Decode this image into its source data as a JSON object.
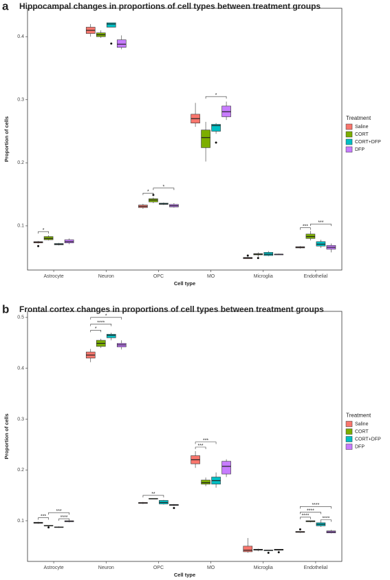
{
  "chart_data": [
    {
      "type": "boxplot",
      "panel": "a",
      "title": "Hippocampal changes in proportions of cell types between treatment groups",
      "xlabel": "Cell type",
      "ylabel": "Proportion of cells",
      "legend_title": "Treatment",
      "legend": "right",
      "grid": false,
      "categories": [
        "Astrocyte",
        "Neuron",
        "OPC",
        "MO",
        "Microglia",
        "Endothelial"
      ],
      "ylim": [
        0.03,
        0.445
      ],
      "yticks": [
        0.1,
        0.2,
        0.3,
        0.4
      ],
      "series": [
        {
          "name": "Saline",
          "color": "#f8766d",
          "values": [
            [
              0.072,
              0.073,
              0.074,
              0.075,
              0.076
            ],
            [
              0.4,
              0.405,
              0.41,
              0.415,
              0.42
            ],
            [
              0.127,
              0.129,
              0.131,
              0.133,
              0.135
            ],
            [
              0.257,
              0.263,
              0.27,
              0.277,
              0.295
            ],
            [
              0.048,
              0.048,
              0.049,
              0.05,
              0.051
            ],
            [
              0.064,
              0.065,
              0.066,
              0.067,
              0.068
            ]
          ]
        },
        {
          "name": "CORT",
          "color": "#7cae00",
          "values": [
            [
              0.077,
              0.078,
              0.08,
              0.083,
              0.085
            ],
            [
              0.398,
              0.4,
              0.403,
              0.406,
              0.41
            ],
            [
              0.136,
              0.138,
              0.141,
              0.143,
              0.145
            ],
            [
              0.202,
              0.224,
              0.24,
              0.252,
              0.265
            ],
            [
              0.051,
              0.054,
              0.055,
              0.056,
              0.058
            ],
            [
              0.077,
              0.08,
              0.083,
              0.087,
              0.092
            ]
          ]
        },
        {
          "name": "CORT+DFP",
          "color": "#00bfc4",
          "values": [
            [
              0.069,
              0.07,
              0.071,
              0.072,
              0.073
            ],
            [
              0.415,
              0.415,
              0.42,
              0.422,
              0.422
            ],
            [
              0.133,
              0.134,
              0.135,
              0.136,
              0.137
            ],
            [
              0.246,
              0.25,
              0.259,
              0.261,
              0.263
            ],
            [
              0.052,
              0.053,
              0.055,
              0.058,
              0.06
            ],
            [
              0.065,
              0.068,
              0.071,
              0.075,
              0.078
            ]
          ]
        },
        {
          "name": "DFP",
          "color": "#c77cff",
          "values": [
            [
              0.071,
              0.073,
              0.075,
              0.078,
              0.08
            ],
            [
              0.38,
              0.383,
              0.388,
              0.395,
              0.402
            ],
            [
              0.129,
              0.13,
              0.132,
              0.134,
              0.136
            ],
            [
              0.268,
              0.273,
              0.281,
              0.29,
              0.297
            ],
            [
              0.054,
              0.054,
              0.055,
              0.055,
              0.056
            ],
            [
              0.058,
              0.063,
              0.066,
              0.069,
              0.072
            ]
          ]
        }
      ],
      "outliers": [
        {
          "series": "Saline",
          "category": "Astrocyte",
          "value": 0.068
        },
        {
          "series": "CORT+DFP",
          "category": "Neuron",
          "value": 0.389
        },
        {
          "series": "CORT",
          "category": "OPC",
          "value": 0.149
        },
        {
          "series": "CORT+DFP",
          "category": "MO",
          "value": 0.232
        },
        {
          "series": "Saline",
          "category": "Microglia",
          "value": 0.053
        },
        {
          "series": "CORT",
          "category": "Microglia",
          "value": 0.049
        }
      ],
      "brackets": [
        {
          "category": "Astrocyte",
          "from": "Saline",
          "to": "CORT",
          "y": 0.091,
          "label": "*"
        },
        {
          "category": "OPC",
          "from": "Saline",
          "to": "CORT",
          "y": 0.152,
          "label": "*"
        },
        {
          "category": "OPC",
          "from": "CORT",
          "to": "DFP",
          "y": 0.16,
          "label": "*"
        },
        {
          "category": "MO",
          "from": "CORT",
          "to": "DFP",
          "y": 0.305,
          "label": "*"
        },
        {
          "category": "Endothelial",
          "from": "Saline",
          "to": "CORT",
          "y": 0.097,
          "label": "***"
        },
        {
          "category": "Endothelial",
          "from": "CORT",
          "to": "DFP",
          "y": 0.103,
          "label": "***"
        }
      ]
    },
    {
      "type": "boxplot",
      "panel": "b",
      "title": "Frontal cortex changes in proportions of cell types between treatment groups",
      "xlabel": "Cell type",
      "ylabel": "Proportion of cells",
      "legend_title": "Treatment",
      "legend": "right",
      "grid": false,
      "categories": [
        "Astrocyte",
        "Neuron",
        "OPC",
        "MO",
        "Microglia",
        "Endothelial"
      ],
      "ylim": [
        0.02,
        0.512
      ],
      "yticks": [
        0.1,
        0.2,
        0.3,
        0.4,
        0.5
      ],
      "series": [
        {
          "name": "Saline",
          "color": "#f8766d",
          "values": [
            [
              0.094,
              0.095,
              0.096,
              0.097,
              0.098
            ],
            [
              0.412,
              0.42,
              0.426,
              0.432,
              0.438
            ],
            [
              0.133,
              0.134,
              0.135,
              0.136,
              0.137
            ],
            [
              0.204,
              0.212,
              0.22,
              0.228,
              0.237
            ],
            [
              0.037,
              0.039,
              0.042,
              0.05,
              0.066
            ],
            [
              0.076,
              0.077,
              0.078,
              0.079,
              0.079
            ]
          ]
        },
        {
          "name": "CORT",
          "color": "#7cae00",
          "values": [
            [
              0.089,
              0.09,
              0.09,
              0.091,
              0.091
            ],
            [
              0.44,
              0.443,
              0.449,
              0.455,
              0.458
            ],
            [
              0.143,
              0.143,
              0.143,
              0.144,
              0.144
            ],
            [
              0.168,
              0.172,
              0.175,
              0.18,
              0.185
            ],
            [
              0.04,
              0.042,
              0.043,
              0.044,
              0.045
            ],
            [
              0.097,
              0.098,
              0.099,
              0.1,
              0.1
            ]
          ]
        },
        {
          "name": "CORT+DFP",
          "color": "#00bfc4",
          "values": [
            [
              0.086,
              0.087,
              0.087,
              0.088,
              0.089
            ],
            [
              0.455,
              0.46,
              0.465,
              0.467,
              0.47
            ],
            [
              0.132,
              0.133,
              0.136,
              0.14,
              0.141
            ],
            [
              0.165,
              0.172,
              0.179,
              0.186,
              0.195
            ],
            [
              0.041,
              0.041,
              0.042,
              0.042,
              0.042
            ],
            [
              0.088,
              0.09,
              0.093,
              0.096,
              0.098
            ]
          ]
        },
        {
          "name": "DFP",
          "color": "#c77cff",
          "values": [
            [
              0.097,
              0.098,
              0.099,
              0.1,
              0.1
            ],
            [
              0.437,
              0.442,
              0.446,
              0.449,
              0.455
            ],
            [
              0.129,
              0.13,
              0.131,
              0.132,
              0.133
            ],
            [
              0.186,
              0.192,
              0.207,
              0.217,
              0.221
            ],
            [
              0.041,
              0.042,
              0.043,
              0.044,
              0.044
            ],
            [
              0.075,
              0.076,
              0.078,
              0.08,
              0.082
            ]
          ]
        }
      ],
      "outliers": [
        {
          "series": "CORT",
          "category": "Astrocyte",
          "value": 0.087
        },
        {
          "series": "DFP",
          "category": "OPC",
          "value": 0.125
        },
        {
          "series": "CORT+DFP",
          "category": "Microglia",
          "value": 0.037
        },
        {
          "series": "DFP",
          "category": "Microglia",
          "value": 0.038
        },
        {
          "series": "Saline",
          "category": "Endothelial",
          "value": 0.083
        }
      ],
      "brackets": [
        {
          "category": "Astrocyte",
          "from": "Saline",
          "to": "CORT",
          "y": 0.106,
          "label": "***"
        },
        {
          "category": "Astrocyte",
          "from": "CORT+DFP",
          "to": "DFP",
          "y": 0.104,
          "label": "****"
        },
        {
          "category": "Astrocyte",
          "from": "CORT",
          "to": "DFP",
          "y": 0.116,
          "label": "***"
        },
        {
          "category": "Neuron",
          "from": "Saline",
          "to": "CORT",
          "y": 0.475,
          "label": "*"
        },
        {
          "category": "Neuron",
          "from": "Saline",
          "to": "CORT+DFP",
          "y": 0.487,
          "label": "****"
        },
        {
          "category": "Neuron",
          "from": "Saline",
          "to": "DFP",
          "y": 0.5,
          "label": "*"
        },
        {
          "category": "OPC",
          "from": "Saline",
          "to": "CORT+DFP",
          "y": 0.15,
          "label": "**"
        },
        {
          "category": "MO",
          "from": "Saline",
          "to": "CORT",
          "y": 0.245,
          "label": "***"
        },
        {
          "category": "MO",
          "from": "Saline",
          "to": "CORT+DFP",
          "y": 0.255,
          "label": "***"
        },
        {
          "category": "Endothelial",
          "from": "CORT+DFP",
          "to": "DFP",
          "y": 0.102,
          "label": "****"
        },
        {
          "category": "Endothelial",
          "from": "Saline",
          "to": "CORT",
          "y": 0.107,
          "label": "****"
        },
        {
          "category": "Endothelial",
          "from": "Saline",
          "to": "CORT+DFP",
          "y": 0.117,
          "label": "****"
        },
        {
          "category": "Endothelial",
          "from": "Saline",
          "to": "DFP",
          "y": 0.128,
          "label": "****"
        }
      ]
    }
  ]
}
